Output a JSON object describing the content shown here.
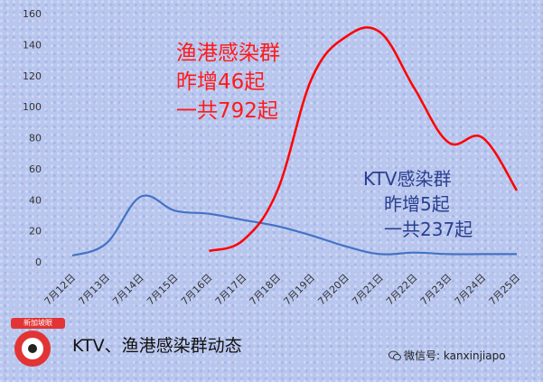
{
  "chart_data": {
    "type": "line",
    "categories": [
      "7月12日",
      "7月13日",
      "7月14日",
      "7月15日",
      "7月16日",
      "7月17日",
      "7月18日",
      "7月19日",
      "7月20日",
      "7月21日",
      "7月22日",
      "7月23日",
      "7月24日",
      "7月25日"
    ],
    "ylim": [
      0,
      160
    ],
    "yticks": [
      0,
      20,
      40,
      60,
      80,
      100,
      120,
      140,
      160
    ],
    "grid": false,
    "series": [
      {
        "key": "ktv",
        "color": "#4472c4",
        "values": [
          4,
          12,
          42,
          33,
          31,
          27,
          23,
          17,
          10,
          5,
          6,
          5,
          5,
          5
        ]
      },
      {
        "key": "fishery",
        "color": "#ff0000",
        "values": [
          null,
          null,
          null,
          null,
          7,
          14,
          46,
          118,
          145,
          148,
          112,
          77,
          80,
          46
        ]
      }
    ],
    "annotations": {
      "fishery": [
        "渔港感染群",
        "昨增46起",
        "一共792起"
      ],
      "ktv": [
        "KTV感染群",
        "昨增5起",
        "一共237起"
      ]
    }
  },
  "footer": {
    "logo_text": "新加坡眼",
    "title": "KTV、渔港感染群动态",
    "wechat": "微信号: kanxinjiapo"
  }
}
